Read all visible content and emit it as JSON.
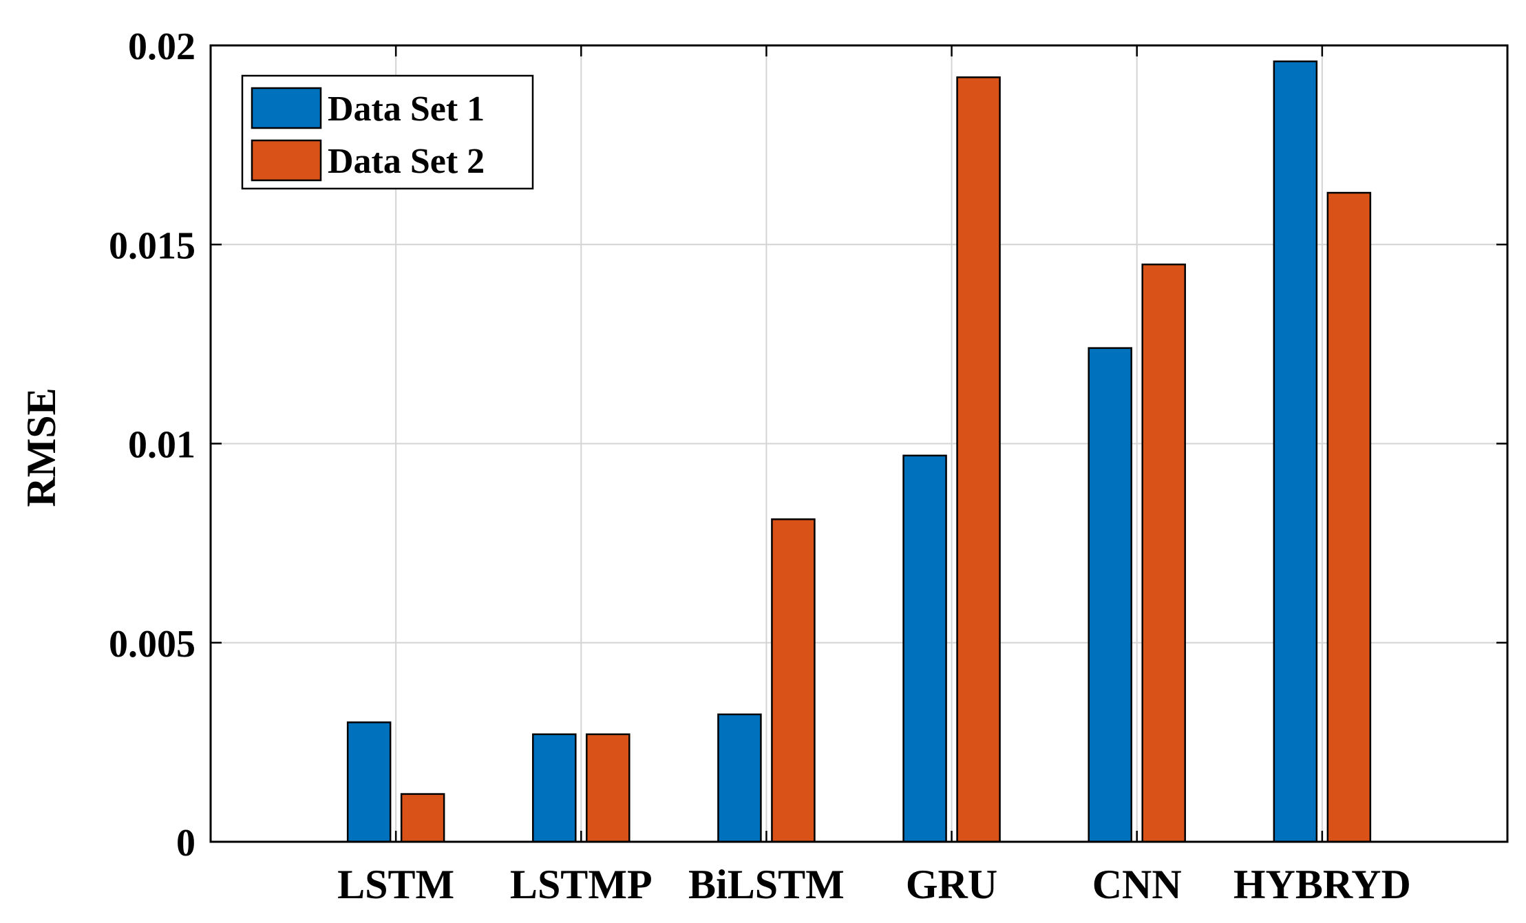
{
  "chart_data": {
    "type": "bar",
    "title": "",
    "xlabel": "",
    "ylabel": "RMSE",
    "ylim": [
      0,
      0.02
    ],
    "yticks": [
      "0",
      "0.005",
      "0.01",
      "0.015",
      "0.02"
    ],
    "ytick_values": [
      0,
      0.005,
      0.01,
      0.015,
      0.02
    ],
    "categories": [
      "LSTM",
      "LSTMP",
      "BiLSTM",
      "GRU",
      "CNN",
      "HYBRYD"
    ],
    "series": [
      {
        "name": "Data Set 1",
        "color": "#0072BD",
        "values": [
          0.003,
          0.0027,
          0.0032,
          0.0097,
          0.0124,
          0.0196
        ]
      },
      {
        "name": "Data Set 2",
        "color": "#D95319",
        "values": [
          0.0012,
          0.0027,
          0.0081,
          0.0192,
          0.0145,
          0.0163
        ]
      }
    ],
    "grid": true,
    "legend_position": "top-left"
  }
}
